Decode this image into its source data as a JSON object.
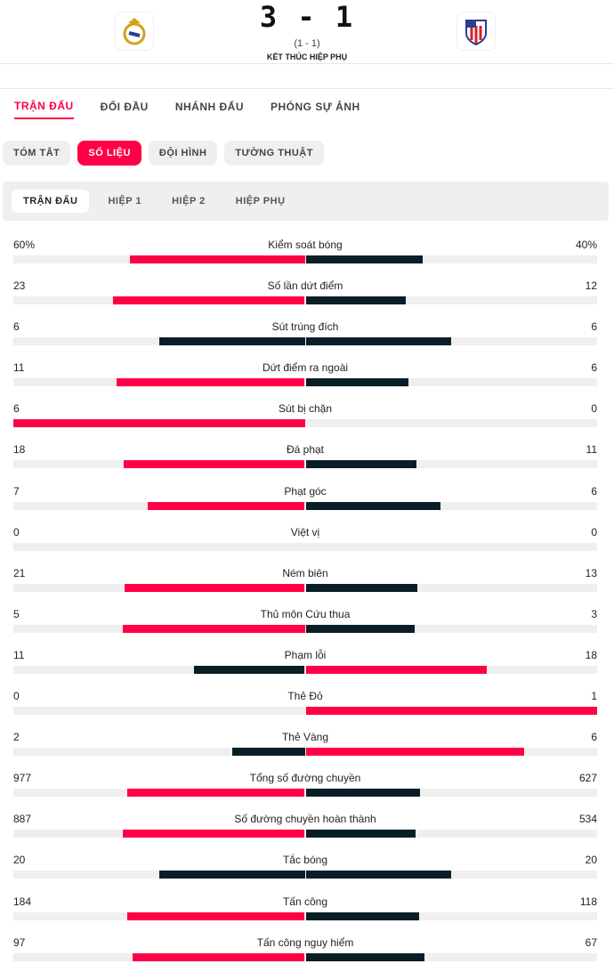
{
  "match": {
    "score": "3 - 1",
    "halftime": "(1 - 1)",
    "status": "KẾT THÚC HIỆP PHỤ",
    "home_logo": "real-madrid-crest",
    "away_logo": "atletico-madrid-crest"
  },
  "tabs": [
    "TRẬN ĐẤU",
    "ĐỐI ĐẦU",
    "NHÁNH ĐẤU",
    "PHÓNG SỰ ẢNH"
  ],
  "pills": [
    "TÓM TẮT",
    "SỐ LIỆU",
    "ĐỘI HÌNH",
    "TƯỜNG THUẬT"
  ],
  "periods": [
    "TRẬN ĐẤU",
    "HIỆP 1",
    "HIỆP 2",
    "HIỆP PHỤ"
  ],
  "colors": {
    "accent": "#ff0046",
    "dark": "#0a1e28"
  },
  "stats": [
    {
      "name": "Kiểm soát bóng",
      "home": "60%",
      "away": "40%",
      "h": 60,
      "a": 40
    },
    {
      "name": "Số lần dứt điểm",
      "home": "23",
      "away": "12",
      "h": 23,
      "a": 12
    },
    {
      "name": "Sút trúng đích",
      "home": "6",
      "away": "6",
      "h": 6,
      "a": 6
    },
    {
      "name": "Dứt điểm ra ngoài",
      "home": "11",
      "away": "6",
      "h": 11,
      "a": 6
    },
    {
      "name": "Sút bị chặn",
      "home": "6",
      "away": "0",
      "h": 6,
      "a": 0
    },
    {
      "name": "Đá phạt",
      "home": "18",
      "away": "11",
      "h": 18,
      "a": 11
    },
    {
      "name": "Phạt góc",
      "home": "7",
      "away": "6",
      "h": 7,
      "a": 6
    },
    {
      "name": "Việt vị",
      "home": "0",
      "away": "0",
      "h": 0,
      "a": 0
    },
    {
      "name": "Ném biên",
      "home": "21",
      "away": "13",
      "h": 21,
      "a": 13
    },
    {
      "name": "Thủ môn Cứu thua",
      "home": "5",
      "away": "3",
      "h": 5,
      "a": 3
    },
    {
      "name": "Phạm lỗi",
      "home": "11",
      "away": "18",
      "h": 11,
      "a": 18
    },
    {
      "name": "Thẻ Đỏ",
      "home": "0",
      "away": "1",
      "h": 0,
      "a": 1
    },
    {
      "name": "Thẻ Vàng",
      "home": "2",
      "away": "6",
      "h": 2,
      "a": 6
    },
    {
      "name": "Tổng số đường chuyền",
      "home": "977",
      "away": "627",
      "h": 977,
      "a": 627
    },
    {
      "name": "Số đường chuyền hoàn thành",
      "home": "887",
      "away": "534",
      "h": 887,
      "a": 534
    },
    {
      "name": "Tắc bóng",
      "home": "20",
      "away": "20",
      "h": 20,
      "a": 20
    },
    {
      "name": "Tấn công",
      "home": "184",
      "away": "118",
      "h": 184,
      "a": 118
    },
    {
      "name": "Tấn công nguy hiểm",
      "home": "97",
      "away": "67",
      "h": 97,
      "a": 67
    }
  ]
}
